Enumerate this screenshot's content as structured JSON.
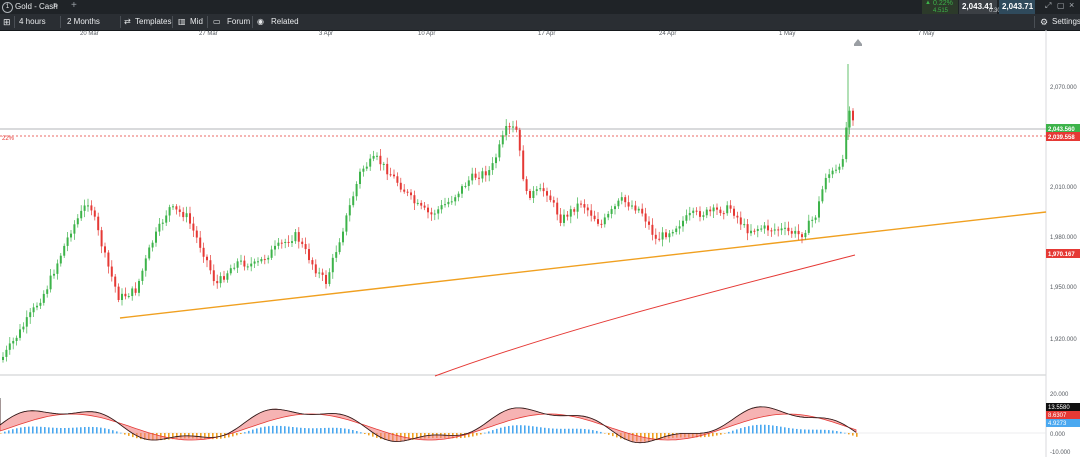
{
  "instrument": {
    "name": "Gold - Cash"
  },
  "toolbar": {
    "timeframe": "4 hours",
    "range": "2 Months",
    "templates": "Templates",
    "price_type": "Mid",
    "forum": "Forum",
    "related": "Related",
    "settings": "Settings"
  },
  "quote": {
    "change_pct": "0.22%",
    "change_abs": "4.515",
    "sell": "2,043.41",
    "spread": "0.30",
    "buy": "2,043.71"
  },
  "chart_data": {
    "type": "candlestick",
    "x_tick_labels": [
      "20 Mar",
      "27 Mar",
      "3 Apr",
      "10 Apr",
      "17 Apr",
      "24 Apr",
      "1 May",
      "7 May"
    ],
    "y_tick_labels": [
      "2,070.000",
      "2,010.000",
      "1,980.000",
      "1,950.000",
      "1,920.000"
    ],
    "price_labels": {
      "last": "2,043.560",
      "reference": "2,039.558",
      "moving_average": "1,970.167",
      "left_marker": "22%"
    },
    "indicator": {
      "tick_labels": [
        "20.000",
        "0.000",
        "-10.000"
      ],
      "value_labels": [
        "13.5580",
        "8.6307",
        "4.9273"
      ]
    },
    "colors": {
      "up": "#3db34a",
      "down": "#e53935",
      "trendline": "#f0a020",
      "moving_average": "#e53935",
      "histogram_up": "#4aa8f0",
      "histogram_down": "#f0a020"
    }
  }
}
